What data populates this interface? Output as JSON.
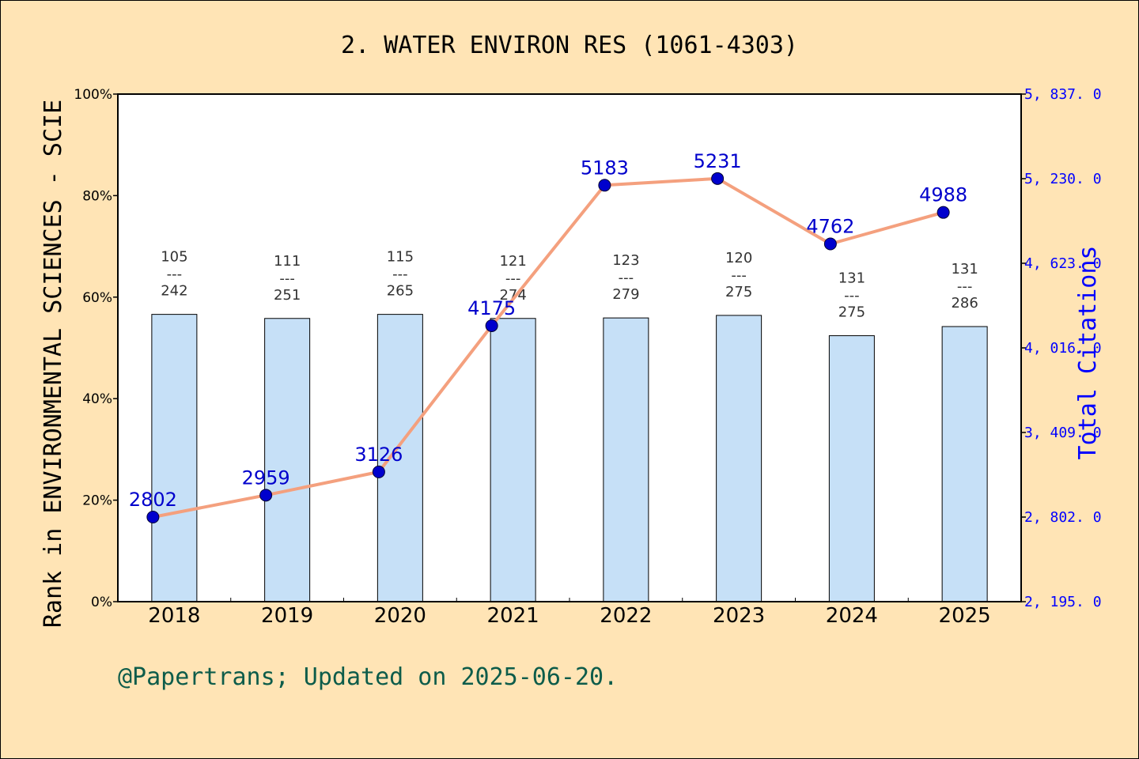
{
  "chart_data": {
    "type": "bar+line",
    "title": "2. WATER ENVIRON RES (1061-4303)",
    "categories": [
      "2018",
      "2019",
      "2020",
      "2021",
      "2022",
      "2023",
      "2024",
      "2025"
    ],
    "left_axis": {
      "label": "Rank in ENVIRONMENTAL SCIENCES - SCIE",
      "ticks": [
        "0%",
        "20%",
        "40%",
        "60%",
        "80%",
        "100%"
      ],
      "ylim": [
        0,
        100
      ]
    },
    "right_axis": {
      "label": "Total Citations",
      "ticks": [
        "2, 195. 0",
        "2, 802. 0",
        "3, 409. 0",
        "4, 016. 0",
        "4, 623. 0",
        "5, 230. 0",
        "5, 837. 0"
      ],
      "ylim": [
        2195,
        5837
      ]
    },
    "bars": {
      "rank": [
        105,
        111,
        115,
        121,
        123,
        120,
        131,
        131
      ],
      "total": [
        242,
        251,
        265,
        274,
        279,
        275,
        275,
        286
      ],
      "values_percent": [
        56.6,
        55.8,
        56.6,
        55.8,
        55.9,
        56.4,
        52.4,
        54.2
      ],
      "separator": "---",
      "color": "#c6e0f7"
    },
    "line": {
      "values": [
        2802,
        2959,
        3126,
        4175,
        5183,
        5231,
        4762,
        4988
      ],
      "labels": [
        "2802",
        "2959",
        "3126",
        "4175",
        "5183",
        "5231",
        "4762",
        "4988"
      ],
      "line_color": "#f4a07e",
      "point_color": "#0000cd"
    },
    "footer": "@Papertrans; Updated on 2025-06-20."
  }
}
